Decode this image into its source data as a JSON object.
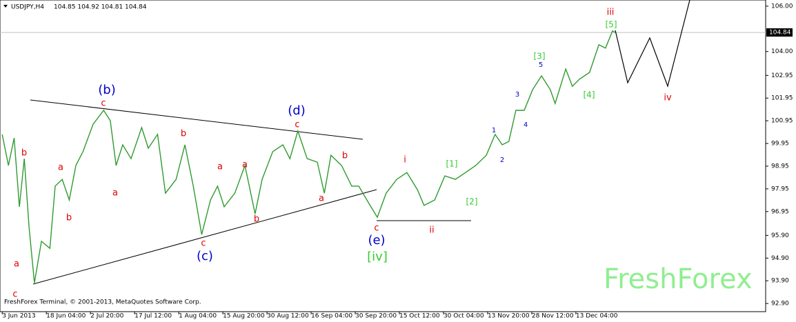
{
  "chart_data": {
    "type": "line",
    "title": "USDJPY,H4",
    "subtitle": "104.85 104.92 104.81 104.84",
    "color": "#2f9a2f",
    "x": [
      0,
      0.14,
      0.27,
      0.39,
      0.5,
      0.61,
      0.73,
      0.89,
      1.08,
      1.2,
      1.36,
      1.52,
      1.67,
      1.83,
      2.06,
      2.3,
      2.45,
      2.58,
      2.73,
      2.92,
      3.16,
      3.31,
      3.52,
      3.7,
      3.94,
      4.14,
      4.33,
      4.52,
      4.72,
      4.88,
      5.03,
      5.27,
      5.5,
      5.73,
      5.89,
      6.13,
      6.36,
      6.52,
      6.7,
      6.91,
      7.14,
      7.3,
      7.45,
      7.69,
      7.92,
      8.08,
      8.31,
      8.5,
      8.7,
      8.94,
      9.17,
      9.41,
      9.56,
      9.8,
      10.03,
      10.27,
      10.5,
      10.73,
      10.97,
      11.17,
      11.33,
      11.48,
      11.64,
      11.83,
      12.02,
      12.22,
      12.42,
      12.53,
      12.77,
      12.92,
      13.08,
      13.31,
      13.52,
      13.67,
      13.83,
      13.89
    ],
    "values": [
      100.35,
      98.98,
      100.19,
      97.16,
      99.28,
      96.24,
      93.81,
      95.64,
      95.33,
      98.07,
      98.37,
      97.46,
      98.98,
      99.59,
      100.8,
      101.41,
      100.95,
      98.98,
      99.89,
      99.28,
      100.65,
      99.74,
      100.35,
      97.76,
      98.37,
      99.89,
      98.07,
      95.94,
      97.46,
      98.07,
      97.16,
      97.76,
      98.98,
      96.85,
      98.37,
      99.59,
      99.89,
      99.28,
      100.5,
      99.28,
      99.13,
      97.76,
      99.43,
      98.98,
      98.07,
      98.07,
      97.31,
      96.7,
      97.76,
      98.37,
      98.67,
      97.91,
      97.22,
      97.46,
      98.52,
      98.37,
      98.67,
      98.98,
      99.43,
      100.35,
      99.89,
      100.04,
      101.41,
      101.41,
      102.32,
      102.93,
      102.32,
      101.71,
      103.23,
      102.47,
      102.78,
      103.08,
      104.3,
      104.15,
      104.91,
      104.84
    ],
    "last_price": 104.84,
    "xlim": [
      -0.05,
      17.3
    ],
    "xticks": [
      {
        "value": 0,
        "label": "3 Jun 2013"
      },
      {
        "value": 1,
        "label": "18 Jun 04:00"
      },
      {
        "value": 2,
        "label": "2 Jul 20:00"
      },
      {
        "value": 3,
        "label": "17 Jul 12:00"
      },
      {
        "value": 4,
        "label": "1 Aug 04:00"
      },
      {
        "value": 5,
        "label": "15 Aug 20:00"
      },
      {
        "value": 6,
        "label": "30 Aug 12:00"
      },
      {
        "value": 7,
        "label": "16 Sep 04:00"
      },
      {
        "value": 8,
        "label": "30 Sep 20:00"
      },
      {
        "value": 9,
        "label": "15 Oct 12:00"
      },
      {
        "value": 10,
        "label": "30 Oct 04:00"
      },
      {
        "value": 11,
        "label": "13 Nov 20:00"
      },
      {
        "value": 12,
        "label": "28 Nov 12:00"
      },
      {
        "value": 13,
        "label": "13 Dec 04:00"
      }
    ],
    "ylim": [
      92.54,
      106.27
    ],
    "yticks": [
      {
        "value": 106,
        "label": "106.00"
      },
      {
        "value": 104,
        "label": "104.00"
      },
      {
        "value": 102.95,
        "label": "102.95"
      },
      {
        "value": 101.95,
        "label": "101.95"
      },
      {
        "value": 100.95,
        "label": "100.95"
      },
      {
        "value": 99.95,
        "label": "99.95"
      },
      {
        "value": 98.95,
        "label": "98.95"
      },
      {
        "value": 97.95,
        "label": "97.95"
      },
      {
        "value": 96.95,
        "label": "96.95"
      },
      {
        "value": 95.9,
        "label": "95.90"
      },
      {
        "value": 94.9,
        "label": "94.90"
      },
      {
        "value": 93.9,
        "label": "93.90"
      },
      {
        "value": 92.9,
        "label": "92.90"
      }
    ],
    "annotations": [
      "b",
      "a",
      "c",
      "a",
      "b",
      "c",
      "a",
      "b",
      "a",
      "c",
      "b",
      "a",
      "c",
      "b",
      "a",
      "c",
      "i",
      "ii",
      "iii",
      "iv",
      "(b)",
      "(c)",
      "(d)",
      "(e)",
      "[iv]",
      "[1]",
      "[2]",
      "[3]",
      "[4]",
      "[5]",
      "1",
      "2",
      "3",
      "4",
      "5"
    ],
    "watermark": "FreshForex",
    "footer": "FreshForex Terminal, © 2001-2013, MetaQuotes Software Corp."
  }
}
